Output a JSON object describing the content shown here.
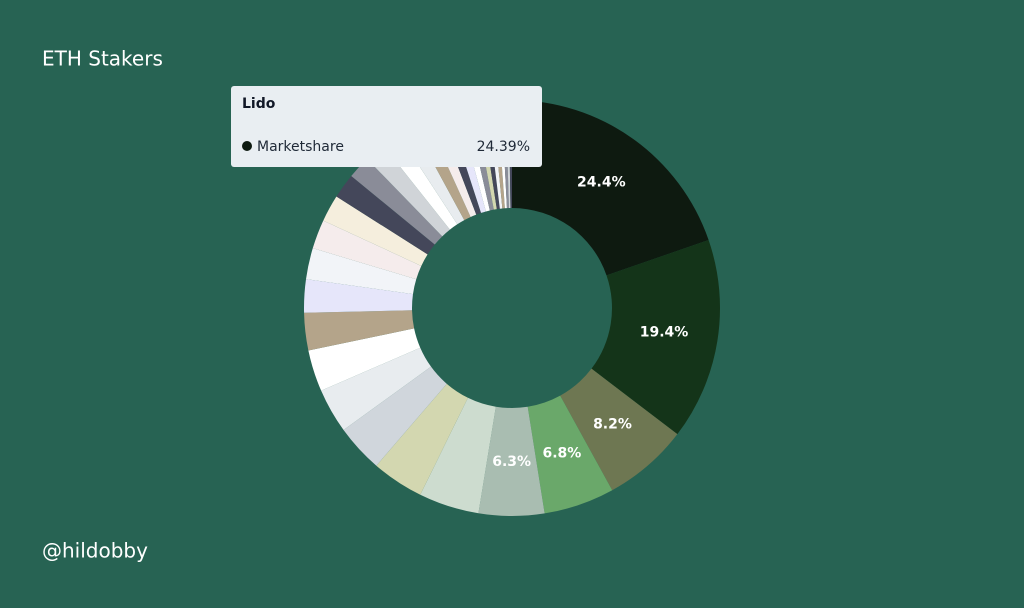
{
  "chart_data": {
    "type": "donut",
    "title": "ETH Stakers",
    "credit": "@hildobby",
    "categories": [
      "Lido",
      null,
      null,
      null,
      null,
      null,
      null,
      null,
      null,
      null,
      null,
      null,
      null,
      null,
      null,
      null,
      null,
      null,
      null,
      null,
      null,
      null,
      null,
      null,
      null,
      null,
      null,
      null,
      null,
      null,
      null,
      null,
      null,
      null
    ],
    "values": [
      24.39,
      19.4,
      8.2,
      6.8,
      6.3,
      5.8,
      5,
      4.6,
      4.3,
      4,
      3.6,
      3.2,
      3,
      2.8,
      2.6,
      2.4,
      2.2,
      2,
      1.8,
      1.6,
      1.4,
      1.2,
      1,
      1,
      0.8,
      0.8,
      0.6,
      0.6,
      0.5,
      0.5,
      0.4,
      0.4,
      0.3,
      0.3
    ],
    "value_labels": [
      "24.4%",
      "19.4%",
      "8.2%",
      "6.8%",
      "6.3%",
      null,
      null,
      null,
      null,
      null,
      null,
      null,
      null,
      null,
      null,
      null,
      null,
      null,
      null,
      null,
      null,
      null,
      null,
      null,
      null,
      null,
      null,
      null,
      null,
      null,
      null,
      null,
      null,
      null
    ],
    "colors": [
      "#0e1a10",
      "#143419",
      "#6e7752",
      "#6aa86a",
      "#a9bdb1",
      "#cddccf",
      "#d3d7b0",
      "#d0d6dc",
      "#e8ecef",
      "#ffffff",
      "#b4a48a",
      "#e6e6fa",
      "#f2f4f8",
      "#f5ecec",
      "#f5eedd",
      "#44475a",
      "#8a8c98",
      "#d0d4d8",
      "#ffffff",
      "#e8ecef",
      "#b4a48a",
      "#f5ecec",
      "#44475a",
      "#e6e6fa",
      "#ffffff",
      "#8a8c98",
      "#d3d7b0",
      "#44475a",
      "#f2f4f8",
      "#b4a48a",
      "#ffffff",
      "#8a8c98",
      "#d0d4d8",
      "#44475a"
    ],
    "tooltip": {
      "title": "Lido",
      "series": "Marketshare",
      "value_label": "24.39%"
    }
  }
}
